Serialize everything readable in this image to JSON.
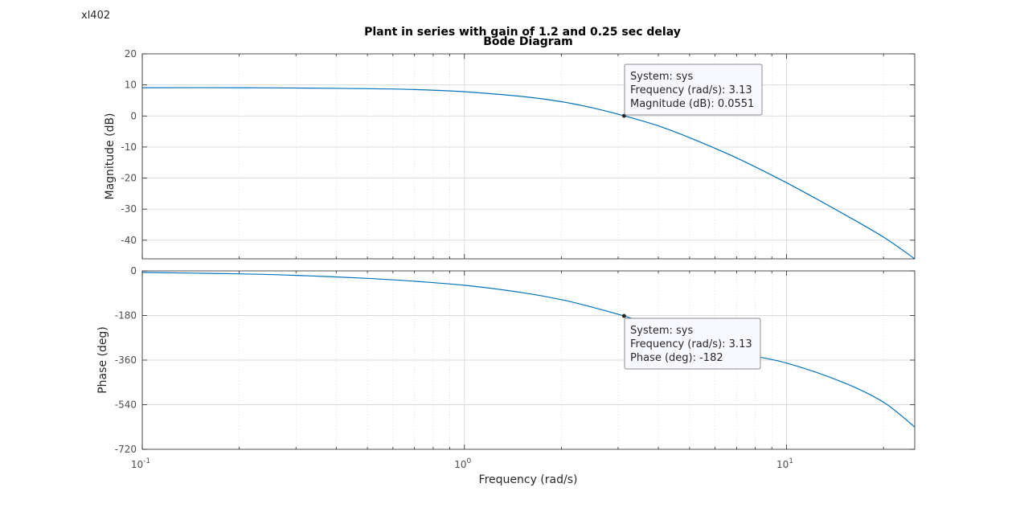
{
  "figure": {
    "label": "xl402"
  },
  "chart_data": {
    "type": "line",
    "title": "Plant in series with gain of 1.2 and 0.25 sec delay",
    "subtitle": "Bode Diagram",
    "xlabel": "Frequency  (rad/s)",
    "xscale": "log",
    "xlim": [
      0.1,
      25
    ],
    "x_ticks": [
      {
        "value": 0.1,
        "base": "10",
        "exp": "-1"
      },
      {
        "value": 1,
        "base": "10",
        "exp": "0"
      },
      {
        "value": 10,
        "base": "10",
        "exp": "1"
      }
    ],
    "grid": true,
    "colors": {
      "line": "#0072bd",
      "axes": "#262626",
      "grid": "#d9d9d9",
      "marker": "#262626"
    },
    "magnitude": {
      "ylabel": "Magnitude (dB)",
      "ylim": [
        -46,
        20
      ],
      "yticks": [
        20,
        10,
        0,
        -10,
        -20,
        -30,
        -40
      ],
      "x": [
        0.1,
        0.2,
        0.3,
        0.5,
        0.7,
        1.0,
        1.5,
        2.0,
        2.5,
        3.13,
        4,
        5,
        7,
        10,
        15,
        20,
        25
      ],
      "y": [
        9.1,
        9.1,
        9.0,
        8.8,
        8.5,
        7.8,
        6.3,
        4.6,
        2.6,
        0.0551,
        -3.2,
        -7.0,
        -13.5,
        -21.5,
        -31.5,
        -39.0,
        -46.0
      ],
      "datatip": {
        "x": 3.13,
        "y": 0.0551,
        "system": "System: sys",
        "frequency": "Frequency (rad/s): 3.13",
        "value": "Magnitude (dB): 0.0551"
      }
    },
    "phase": {
      "ylabel": "Phase (deg)",
      "ylim": [
        -720,
        0
      ],
      "yticks": [
        0,
        -180,
        -360,
        -540,
        -720
      ],
      "x": [
        0.1,
        0.2,
        0.3,
        0.5,
        0.7,
        1.0,
        1.5,
        2.0,
        2.5,
        3.13,
        4,
        5,
        7,
        10,
        15,
        20,
        25
      ],
      "y": [
        -6,
        -12,
        -18,
        -30,
        -42,
        -58,
        -87,
        -116,
        -147,
        -182,
        -228,
        -280,
        -330,
        -372,
        -450,
        -530,
        -630
      ],
      "datatip": {
        "x": 3.13,
        "y": -182,
        "system": "System: sys",
        "frequency": "Frequency (rad/s): 3.13",
        "value": "Phase (deg): -182"
      }
    }
  }
}
